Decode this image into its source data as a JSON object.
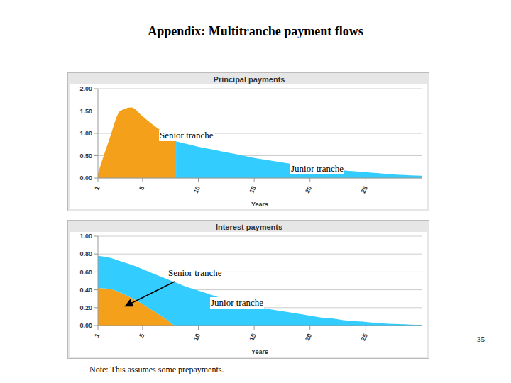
{
  "title": "Appendix: Multitranche payment flows",
  "note": "Note: This assumes some prepayments.",
  "page": "35",
  "chart_data": [
    {
      "type": "area",
      "title": "Principal payments",
      "xlabel": "Years",
      "x": [
        1,
        2,
        3,
        4,
        5,
        6,
        7,
        8,
        9,
        10,
        11,
        12,
        13,
        14,
        15,
        16,
        17,
        18,
        19,
        20,
        21,
        22,
        23,
        24,
        25,
        26,
        27,
        28,
        29,
        30
      ],
      "xlim": [
        1,
        30
      ],
      "xticks": [
        1,
        5,
        10,
        15,
        20,
        25
      ],
      "ylim": [
        0,
        2
      ],
      "yticks": [
        {
          "value": 0,
          "label": "0.00"
        },
        {
          "value": 0.5,
          "label": "0.50"
        },
        {
          "value": 1,
          "label": "1.00"
        },
        {
          "value": 1.5,
          "label": "1.50"
        },
        {
          "value": 2,
          "label": "2.00"
        }
      ],
      "grid": true,
      "stacked": false,
      "series": [
        {
          "name": "Senior tranche",
          "color": "#f5a01a",
          "values": [
            0.1,
            0.85,
            1.5,
            1.58,
            1.38,
            1.18,
            1.0,
            0.82,
            null,
            null,
            null,
            null,
            null,
            null,
            null,
            null,
            null,
            null,
            null,
            null,
            null,
            null,
            null,
            null,
            null,
            null,
            null,
            null,
            null,
            null
          ]
        },
        {
          "name": "Junior tranche",
          "color": "#33ccff",
          "values": [
            null,
            null,
            null,
            null,
            null,
            null,
            null,
            0.82,
            0.76,
            0.7,
            0.65,
            0.6,
            0.55,
            0.5,
            0.45,
            0.41,
            0.37,
            0.33,
            0.29,
            0.26,
            0.23,
            0.2,
            0.17,
            0.15,
            0.13,
            0.11,
            0.09,
            0.07,
            0.06,
            0.05
          ]
        }
      ]
    },
    {
      "type": "area",
      "title": "Interest payments",
      "xlabel": "Years",
      "x": [
        1,
        2,
        3,
        4,
        5,
        6,
        7,
        8,
        9,
        10,
        11,
        12,
        13,
        14,
        15,
        16,
        17,
        18,
        19,
        20,
        21,
        22,
        23,
        24,
        25,
        26,
        27,
        28,
        29,
        30
      ],
      "xlim": [
        1,
        30
      ],
      "xticks": [
        1,
        5,
        10,
        15,
        20,
        25
      ],
      "ylim": [
        0,
        1
      ],
      "yticks": [
        {
          "value": 0,
          "label": "0.00"
        },
        {
          "value": 0.2,
          "label": "0.20"
        },
        {
          "value": 0.4,
          "label": "0.40"
        },
        {
          "value": 0.6,
          "label": "0.60"
        },
        {
          "value": 0.8,
          "label": "0.80"
        },
        {
          "value": 1,
          "label": "1.00"
        }
      ],
      "grid": true,
      "stacked": true,
      "series": [
        {
          "name": "Senior tranche",
          "color": "#f5a01a",
          "values": [
            0.42,
            0.41,
            0.37,
            0.31,
            0.24,
            0.16,
            0.08,
            0,
            0,
            0,
            0,
            0,
            0,
            0,
            0,
            0,
            0,
            0,
            0,
            0,
            0,
            0,
            0,
            0,
            0,
            0,
            0,
            0,
            0,
            0
          ]
        },
        {
          "name": "Junior tranche",
          "color": "#33ccff",
          "values": [
            0.36,
            0.35,
            0.35,
            0.37,
            0.39,
            0.42,
            0.45,
            0.48,
            0.43,
            0.39,
            0.35,
            0.31,
            0.28,
            0.25,
            0.22,
            0.19,
            0.17,
            0.15,
            0.13,
            0.11,
            0.09,
            0.08,
            0.06,
            0.05,
            0.04,
            0.03,
            0.02,
            0.015,
            0.01,
            0.005
          ]
        }
      ]
    }
  ]
}
